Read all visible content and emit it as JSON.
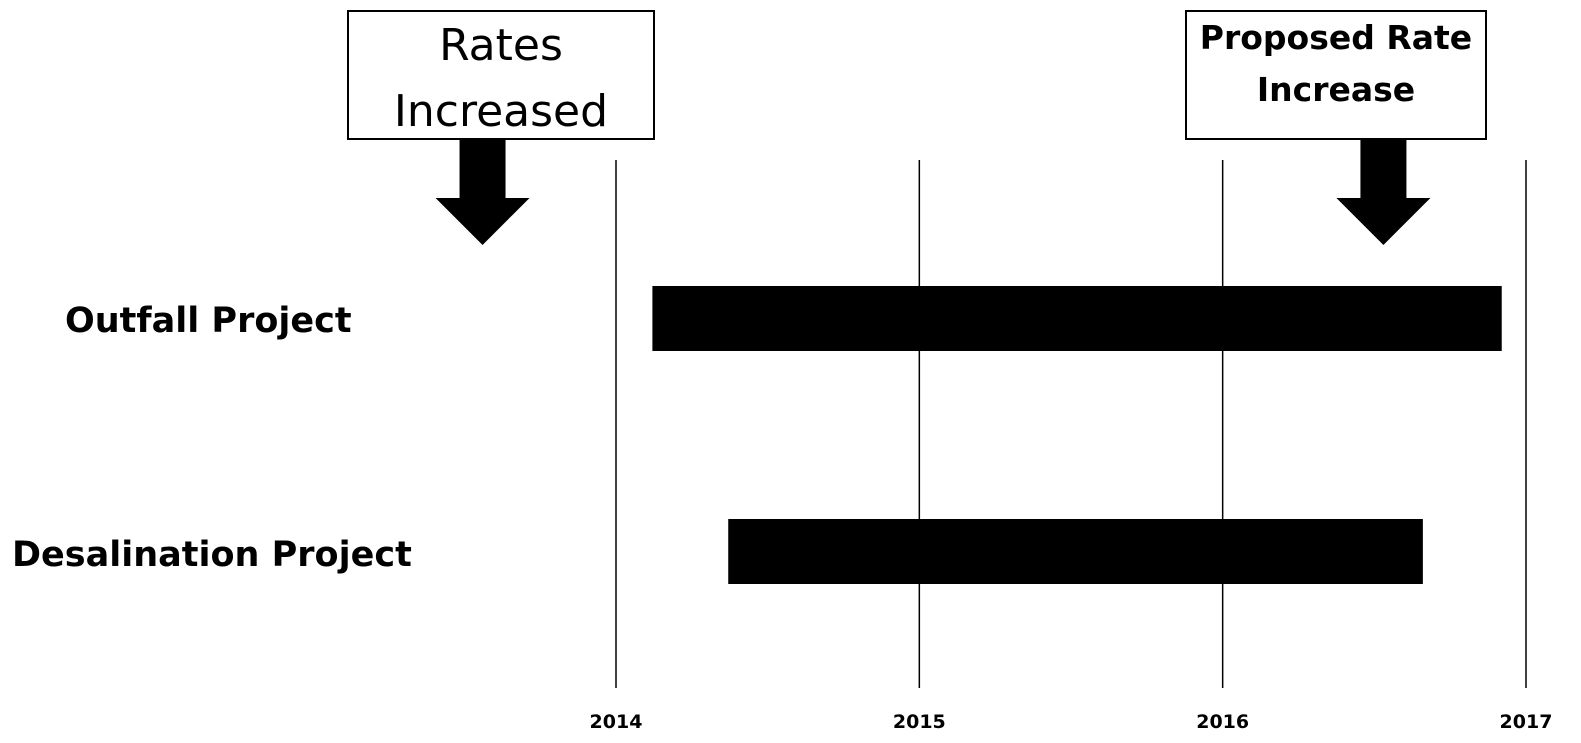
{
  "chart_data": {
    "type": "gantt",
    "title": "",
    "xlabel": "",
    "ylabel": "",
    "x_ticks": [
      "2014",
      "2015",
      "2016",
      "2017"
    ],
    "xlim": [
      2014,
      2017
    ],
    "grid": true,
    "bar_color": "#000000",
    "tasks": [
      {
        "label": "Outfall Project",
        "start": 2014.12,
        "end": 2016.92
      },
      {
        "label": "Desalination Project",
        "start": 2014.37,
        "end": 2016.66
      }
    ],
    "annotations": [
      {
        "lines": [
          "Rates",
          "Increased"
        ],
        "x": 2013.56
      },
      {
        "lines": [
          "Proposed Rate",
          "Increase"
        ],
        "x": 2016.53
      }
    ]
  }
}
